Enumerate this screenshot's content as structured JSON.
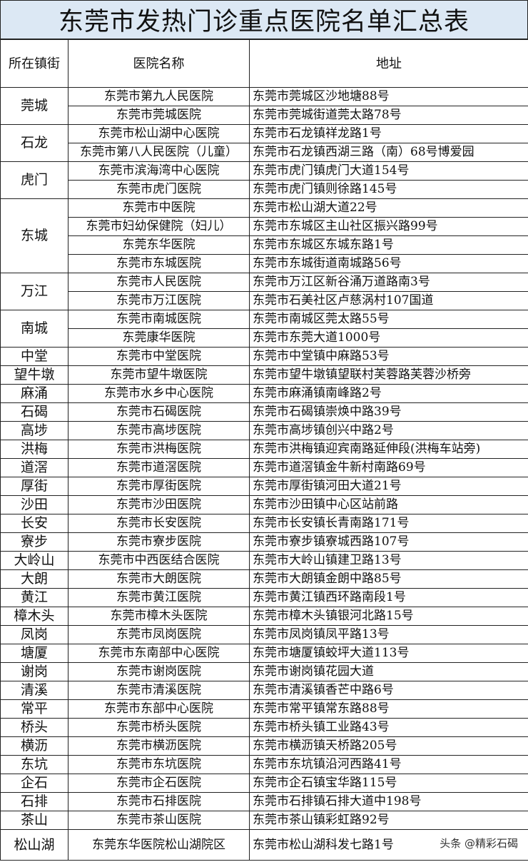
{
  "title": "东莞市发热门诊重点医院名单汇总表",
  "columns": [
    "所在镇街",
    "医院名称",
    "地址"
  ],
  "groups": [
    {
      "town": "莞城",
      "rows": [
        {
          "name": "东莞市第九人民医院",
          "address": "东莞市莞城区沙地塘88号"
        },
        {
          "name": "东莞市莞城医院",
          "address": "东莞市莞城街道莞太路78号"
        }
      ]
    },
    {
      "town": "石龙",
      "rows": [
        {
          "name": "东莞市松山湖中心医院",
          "address": "东莞市石龙镇祥龙路1号"
        },
        {
          "name": "东莞市第八人民医院（儿童）",
          "address": "东莞市石龙镇西湖三路（南）68号博爱园"
        }
      ]
    },
    {
      "town": "虎门",
      "rows": [
        {
          "name": "东莞市滨海湾中心医院",
          "address": "东莞市虎门镇虎门大道154号"
        },
        {
          "name": "东莞市虎门医院",
          "address": "东莞市虎门镇则徐路145号"
        }
      ]
    },
    {
      "town": "东城",
      "rows": [
        {
          "name": "东莞市中医院",
          "address": "东莞市松山湖大道22号"
        },
        {
          "name": "东莞市妇幼保健院（妇儿）",
          "address": "东莞市东城区主山社区振兴路99号"
        },
        {
          "name": "东莞东华医院",
          "address": "东莞市东城区东城东路1号"
        },
        {
          "name": "东莞市东城医院",
          "address": "东莞市东城街道南城路56号"
        }
      ]
    },
    {
      "town": "万江",
      "rows": [
        {
          "name": "东莞市人民医院",
          "address": "东莞市万江区新谷涌万道路南3号"
        },
        {
          "name": "东莞市万江医院",
          "address": "东莞市石美社区卢慈涡村107国道"
        }
      ]
    },
    {
      "town": "南城",
      "rows": [
        {
          "name": "东莞市南城医院",
          "address": "东莞市南城区莞太路55号"
        },
        {
          "name": "东莞康华医院",
          "address": "东莞市东莞大道1000号"
        }
      ]
    },
    {
      "town": "中堂",
      "rows": [
        {
          "name": "东莞市中堂医院",
          "address": "东莞市中堂镇中麻路53号"
        }
      ]
    },
    {
      "town": "望牛墩",
      "rows": [
        {
          "name": "东莞市望牛墩医院",
          "address": "东莞市望牛墩镇望联村芙蓉路芙蓉沙桥旁"
        }
      ]
    },
    {
      "town": "麻涌",
      "rows": [
        {
          "name": "东莞市水乡中心医院",
          "address": "东莞市麻涌镇南峰路2号"
        }
      ]
    },
    {
      "town": "石碣",
      "rows": [
        {
          "name": "东莞市石碣医院",
          "address": "东莞市石碣镇崇焕中路39号"
        }
      ]
    },
    {
      "town": "高埗",
      "rows": [
        {
          "name": "东莞市高埗医院",
          "address": "东莞市高埗镇创兴中路2号"
        }
      ]
    },
    {
      "town": "洪梅",
      "rows": [
        {
          "name": "东莞市洪梅医院",
          "address": "东莞市洪梅镇迎宾南路延伸段(洪梅车站旁)"
        }
      ]
    },
    {
      "town": "道滘",
      "rows": [
        {
          "name": "东莞市道滘医院",
          "address": "东莞市道滘镇金牛新村南路69号"
        }
      ]
    },
    {
      "town": "厚街",
      "rows": [
        {
          "name": "东莞市厚街医院",
          "address": "东莞市厚街镇河田大道21号"
        }
      ]
    },
    {
      "town": "沙田",
      "rows": [
        {
          "name": "东莞市沙田医院",
          "address": "东莞市沙田镇中心区站前路"
        }
      ]
    },
    {
      "town": "长安",
      "rows": [
        {
          "name": "东莞市长安医院",
          "address": "东莞市长安镇长青南路171号"
        }
      ]
    },
    {
      "town": "寮步",
      "rows": [
        {
          "name": "东莞市寮步医院",
          "address": "东莞市寮步镇寮城西路107号"
        }
      ]
    },
    {
      "town": "大岭山",
      "rows": [
        {
          "name": "东莞市中西医结合医院",
          "address": "东莞市大岭山镇建卫路13号"
        }
      ]
    },
    {
      "town": "大朗",
      "rows": [
        {
          "name": "东莞市大朗医院",
          "address": "东莞市大朗镇金朗中路85号"
        }
      ]
    },
    {
      "town": "黄江",
      "rows": [
        {
          "name": "东莞市黄江医院",
          "address": "东莞市黄江镇西环路南段1号"
        }
      ]
    },
    {
      "town": "樟木头",
      "rows": [
        {
          "name": "东莞市樟木头医院",
          "address": "东莞市樟木头镇银河北路15号"
        }
      ]
    },
    {
      "town": "凤岗",
      "rows": [
        {
          "name": "东莞市凤岗医院",
          "address": "东莞市凤岗镇凤平路13号"
        }
      ]
    },
    {
      "town": "塘厦",
      "rows": [
        {
          "name": "东莞市东南部中心医院",
          "address": "东莞市塘厦镇蛟坪大道113号"
        }
      ]
    },
    {
      "town": "谢岗",
      "rows": [
        {
          "name": "东莞市谢岗医院",
          "address": "东莞市谢岗镇花园大道"
        }
      ]
    },
    {
      "town": "清溪",
      "rows": [
        {
          "name": "东莞市清溪医院",
          "address": "东莞市清溪镇香芒中路6号"
        }
      ]
    },
    {
      "town": "常平",
      "rows": [
        {
          "name": "东莞市东部中心医院",
          "address": "东莞市常平镇常东路88号"
        }
      ]
    },
    {
      "town": "桥头",
      "rows": [
        {
          "name": "东莞市桥头医院",
          "address": "东莞市桥头镇工业路43号"
        }
      ]
    },
    {
      "town": "横沥",
      "rows": [
        {
          "name": "东莞市横沥医院",
          "address": "东莞市横沥镇天桥路205号"
        }
      ]
    },
    {
      "town": "东坑",
      "rows": [
        {
          "name": "东莞市东坑医院",
          "address": "东莞市东坑镇沿河西路41号"
        }
      ]
    },
    {
      "town": "企石",
      "rows": [
        {
          "name": "东莞市企石医院",
          "address": "东莞市企石镇宝华路115号"
        }
      ]
    },
    {
      "town": "石排",
      "rows": [
        {
          "name": "东莞市石排医院",
          "address": "东莞市石排镇石排大道中198号"
        }
      ]
    },
    {
      "town": "茶山",
      "rows": [
        {
          "name": "东莞市茶山医院",
          "address": "东莞市茶山镇彩虹路92号"
        }
      ]
    },
    {
      "town": "松山湖",
      "rows": [
        {
          "name": "东莞东华医院松山湖院区",
          "address": "东莞市松山湖科发七路1号"
        }
      ]
    }
  ],
  "watermark": "头条 @精彩石碣",
  "colors": {
    "title_bg": "#dce8f4",
    "border": "#222222"
  }
}
